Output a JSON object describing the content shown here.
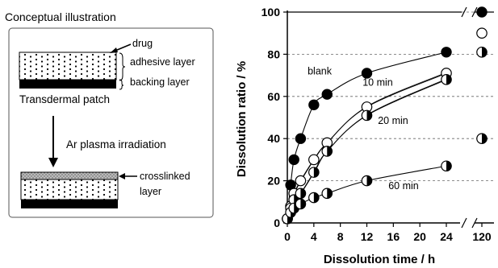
{
  "illustration": {
    "title": "Conceptual illustration",
    "labels": {
      "drug": "drug",
      "adhesive": "adhesive layer",
      "backing": "backing layer",
      "patch": "Transdermal patch",
      "process": "Ar plasma irradiation",
      "crosslinked_1": "crosslinked",
      "crosslinked_2": "layer"
    }
  },
  "chart_data": {
    "type": "line",
    "xlabel": "Dissolution time / h",
    "ylabel": "Dissolution ratio / %",
    "ylim": [
      0,
      100
    ],
    "yticks": [
      0,
      20,
      40,
      60,
      80,
      100
    ],
    "xticks": [
      0,
      4,
      8,
      12,
      16,
      20,
      24
    ],
    "xlim": [
      0,
      24
    ],
    "broken_axis": {
      "after": 24,
      "extra_tick": 120
    },
    "grid": "dashed horizontal",
    "series": [
      {
        "name": "blank",
        "marker": "filled",
        "points": [
          [
            0,
            2
          ],
          [
            0.5,
            18
          ],
          [
            1,
            30
          ],
          [
            2,
            40
          ],
          [
            4,
            56
          ],
          [
            6,
            61
          ],
          [
            12,
            71
          ],
          [
            24,
            81
          ]
        ],
        "at_120": 100
      },
      {
        "name": "10 min",
        "marker": "open",
        "points": [
          [
            0,
            2
          ],
          [
            0.5,
            8
          ],
          [
            1,
            14
          ],
          [
            2,
            20
          ],
          [
            4,
            30
          ],
          [
            6,
            38
          ],
          [
            12,
            55
          ],
          [
            24,
            71
          ]
        ],
        "at_120": 90
      },
      {
        "name": "20 min",
        "marker": "half",
        "points": [
          [
            0,
            2
          ],
          [
            0.5,
            7
          ],
          [
            1,
            11
          ],
          [
            2,
            14
          ],
          [
            4,
            24
          ],
          [
            6,
            34
          ],
          [
            12,
            51
          ],
          [
            24,
            68
          ]
        ],
        "at_120": 81
      },
      {
        "name": "60 min",
        "marker": "half",
        "points": [
          [
            0,
            2
          ],
          [
            0.5,
            5
          ],
          [
            1,
            7
          ],
          [
            2,
            9
          ],
          [
            4,
            12
          ],
          [
            6,
            14
          ],
          [
            12,
            20
          ],
          [
            24,
            27
          ]
        ],
        "at_120": 40
      }
    ]
  }
}
